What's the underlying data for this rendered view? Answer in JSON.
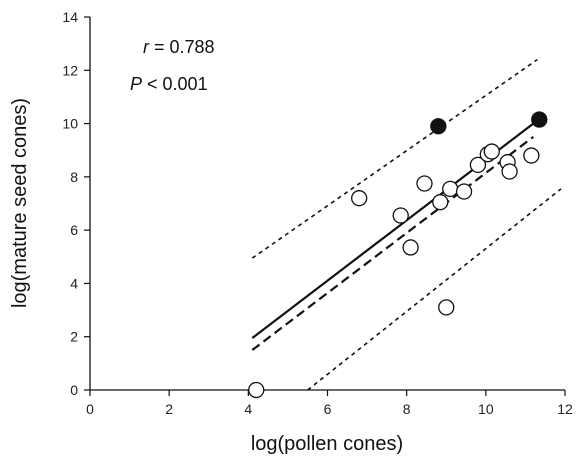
{
  "chart_data": {
    "type": "scatter",
    "xlabel": "log(pollen cones)",
    "ylabel": "log(mature seed cones)",
    "xlim": [
      0,
      12
    ],
    "ylim": [
      0,
      14
    ],
    "xticks": [
      0,
      2,
      4,
      6,
      8,
      10,
      12
    ],
    "yticks": [
      0,
      2,
      4,
      6,
      8,
      10,
      12,
      14
    ],
    "grid": false,
    "annotations": {
      "r_symbol": "r",
      "r_text": " = 0.788",
      "p_symbol": "P",
      "p_text": " < 0.001"
    },
    "series": [
      {
        "marker": "open-circle",
        "points": [
          {
            "x": 4.2,
            "y": 0.0
          },
          {
            "x": 6.8,
            "y": 7.2
          },
          {
            "x": 7.85,
            "y": 6.55
          },
          {
            "x": 8.1,
            "y": 5.35
          },
          {
            "x": 8.45,
            "y": 7.75
          },
          {
            "x": 8.85,
            "y": 7.05
          },
          {
            "x": 9.0,
            "y": 3.1
          },
          {
            "x": 9.1,
            "y": 7.55
          },
          {
            "x": 9.45,
            "y": 7.45
          },
          {
            "x": 9.8,
            "y": 8.45
          },
          {
            "x": 10.05,
            "y": 8.85
          },
          {
            "x": 10.15,
            "y": 8.95
          },
          {
            "x": 10.55,
            "y": 8.55
          },
          {
            "x": 10.6,
            "y": 8.2
          },
          {
            "x": 11.15,
            "y": 8.8
          }
        ]
      },
      {
        "marker": "filled-circle",
        "points": [
          {
            "x": 8.8,
            "y": 9.9
          },
          {
            "x": 11.35,
            "y": 10.15
          }
        ]
      }
    ],
    "lines": [
      {
        "style": "solid",
        "x": [
          4.1,
          11.2
        ],
        "y": [
          1.95,
          10.0
        ]
      },
      {
        "style": "dashed",
        "x": [
          4.1,
          11.2
        ],
        "y": [
          1.5,
          9.5
        ]
      },
      {
        "style": "dotted",
        "x": [
          4.1,
          11.3
        ],
        "y": [
          4.95,
          12.4
        ]
      },
      {
        "style": "dotted",
        "x": [
          5.5,
          11.9
        ],
        "y": [
          0.0,
          7.55
        ]
      }
    ]
  }
}
